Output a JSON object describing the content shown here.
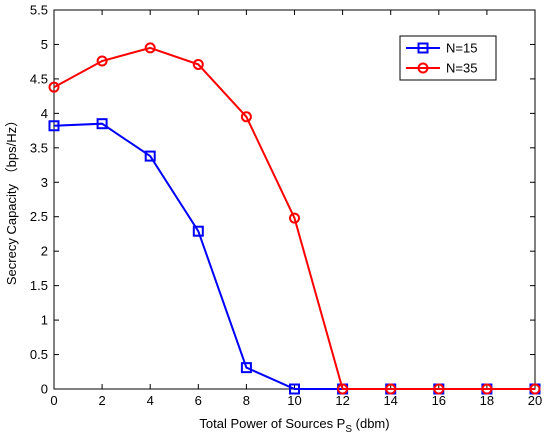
{
  "chart_data": {
    "type": "line",
    "title": "",
    "xlabel": "Total Power of Sources P",
    "xlabel_sub": "S",
    "xlabel_unit": " (dbm)",
    "ylabel": "Secrecy Capacity （bps/Hz）",
    "xlim": [
      0,
      20
    ],
    "ylim": [
      0,
      5.5
    ],
    "xticks": [
      0,
      2,
      4,
      6,
      8,
      10,
      12,
      14,
      16,
      18,
      20
    ],
    "xtick_labels": [
      "0",
      "2",
      "4",
      "6",
      "8",
      "10",
      "12",
      "14",
      "16",
      "18",
      "20"
    ],
    "yticks": [
      0,
      0.5,
      1,
      1.5,
      2,
      2.5,
      3,
      3.5,
      4,
      4.5,
      5,
      5.5
    ],
    "ytick_labels": [
      "0",
      "0.5",
      "1",
      "1.5",
      "2",
      "2.5",
      "3",
      "3.5",
      "4",
      "4.5",
      "5",
      "5.5"
    ],
    "grid": false,
    "legend_position": "top-right",
    "x": [
      0,
      2,
      4,
      6,
      8,
      10,
      12,
      14,
      16,
      18,
      20
    ],
    "series": [
      {
        "name": "N=15",
        "color": "#0000ff",
        "marker": "square",
        "values": [
          3.82,
          3.85,
          3.38,
          2.29,
          0.31,
          0.0,
          0.0,
          0.0,
          0.0,
          0.0,
          0.0
        ]
      },
      {
        "name": "N=35",
        "color": "#ff0000",
        "marker": "circle",
        "values": [
          4.38,
          4.76,
          4.95,
          4.71,
          3.95,
          2.48,
          0.0,
          0.0,
          0.0,
          0.0,
          0.0
        ]
      }
    ]
  }
}
